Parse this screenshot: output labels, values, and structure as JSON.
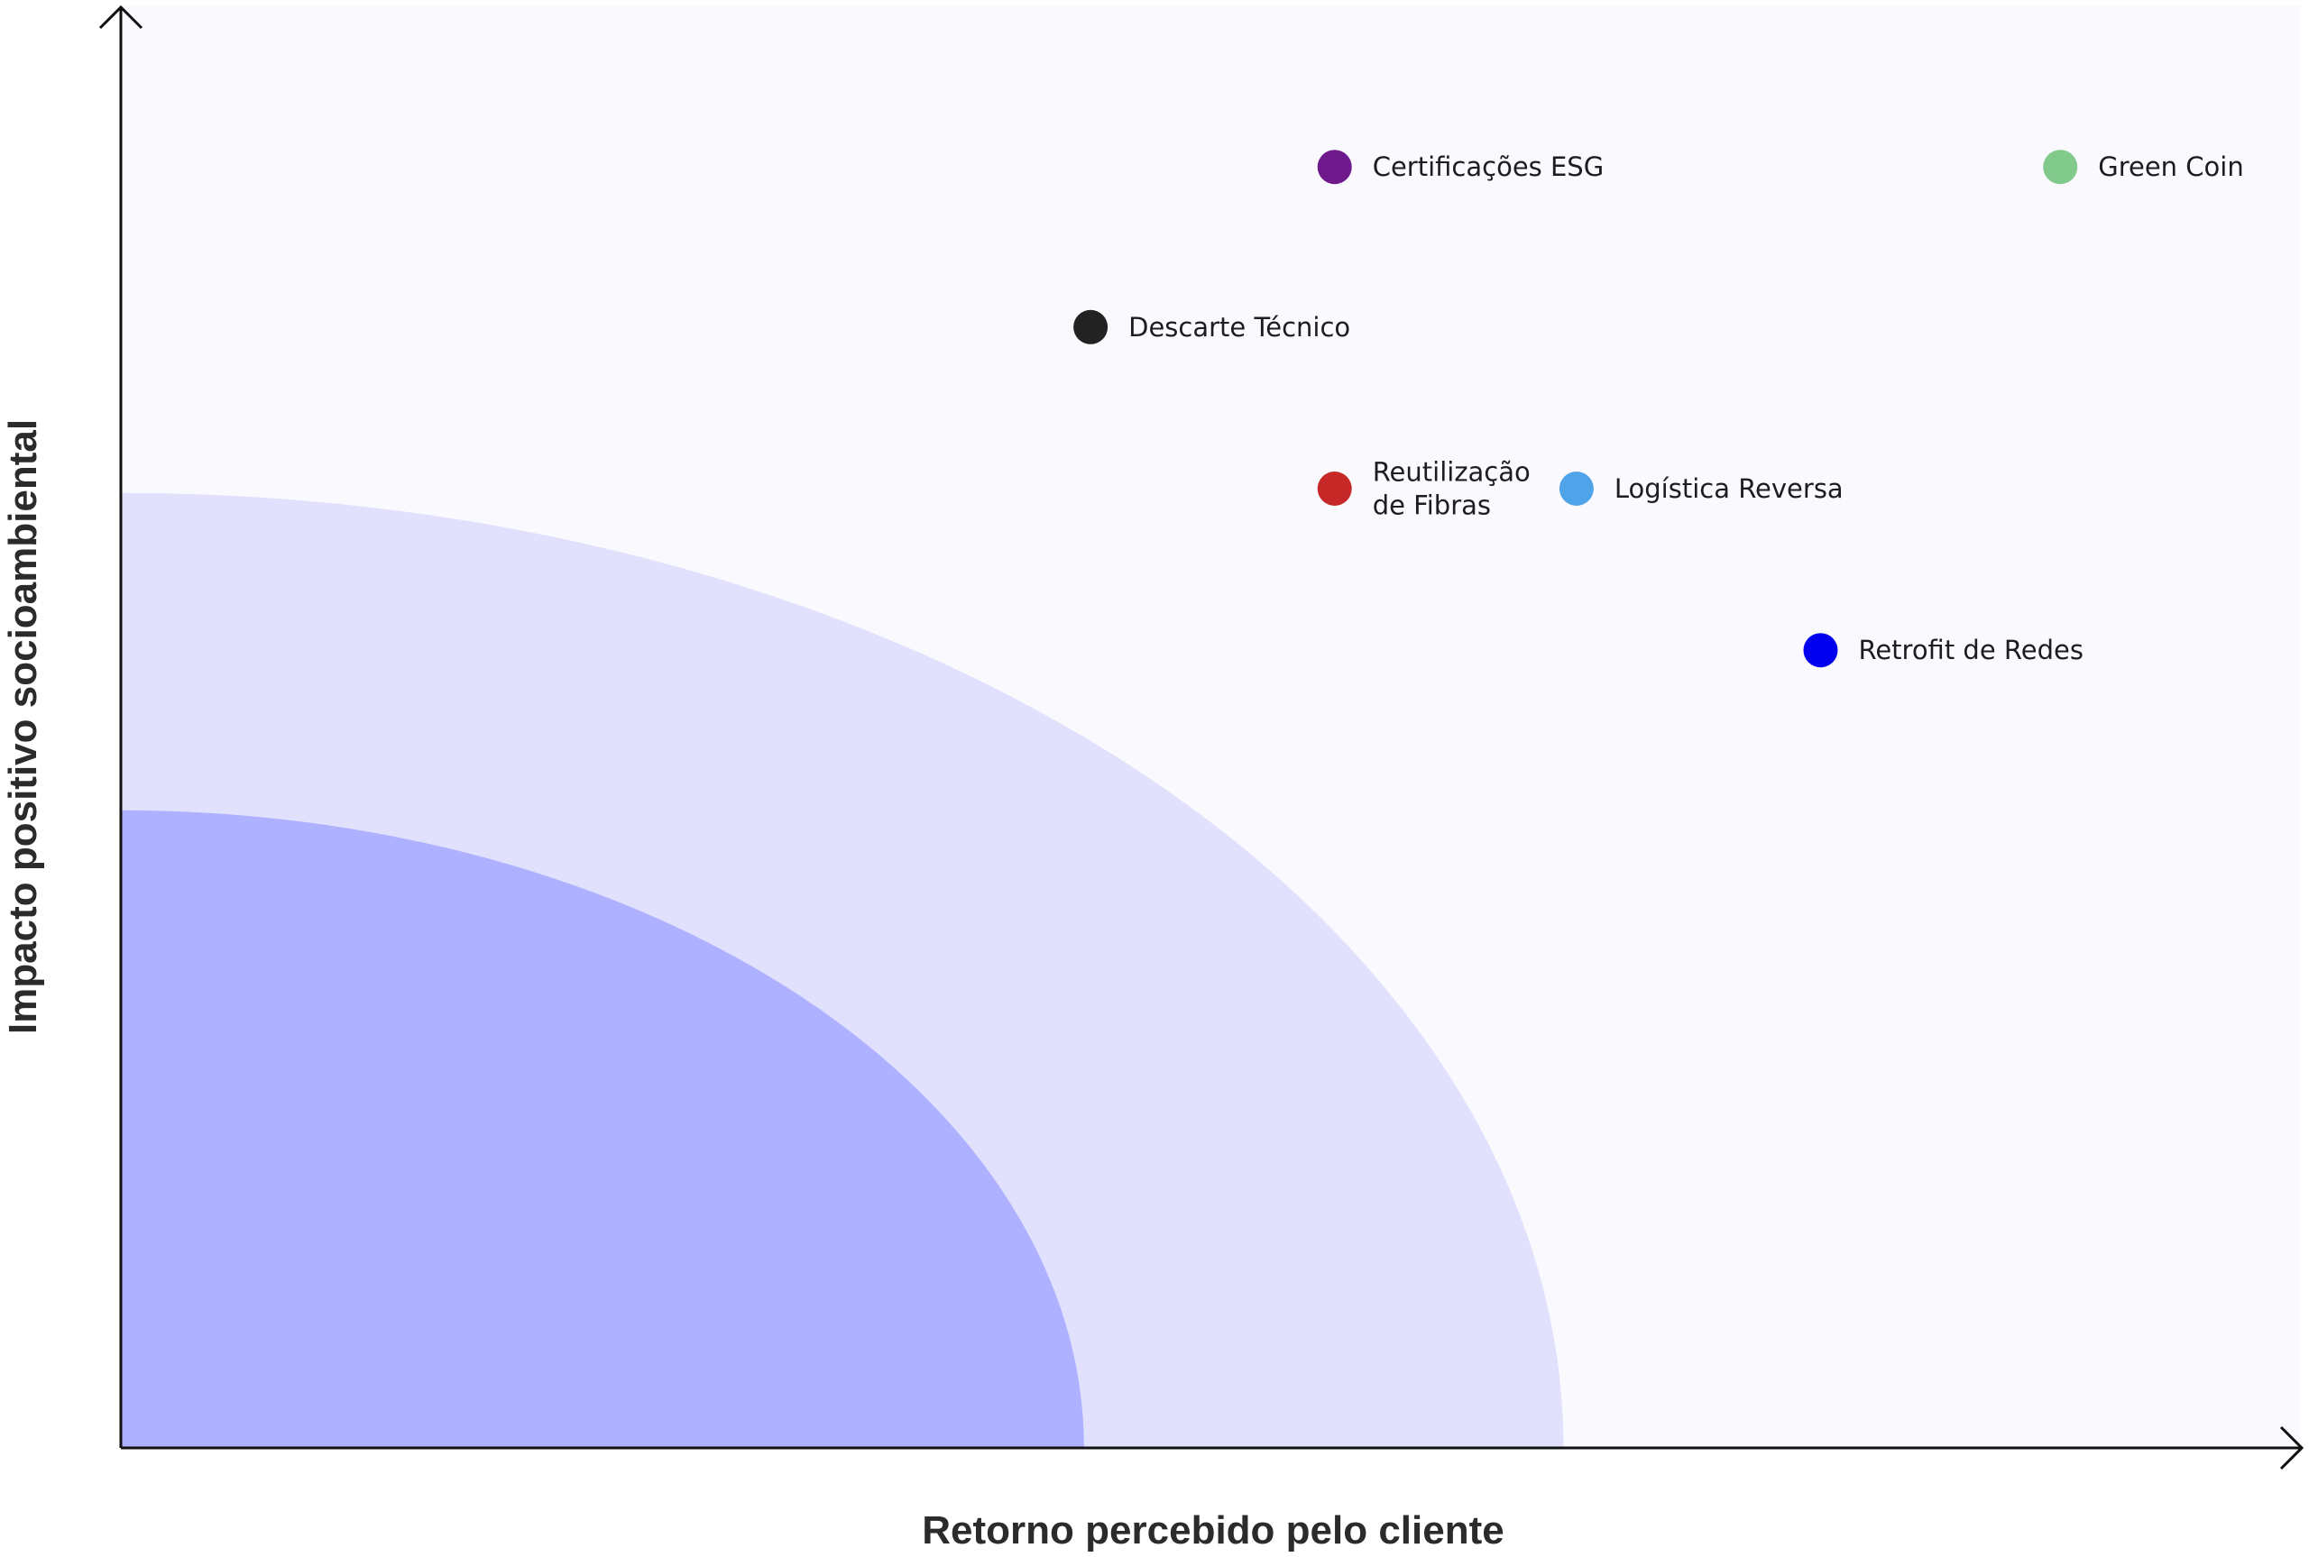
{
  "chart_data": {
    "type": "scatter",
    "title": "",
    "xlabel": "Retorno percebido pelo cliente",
    "ylabel": "Impacto positivo socioambiental",
    "xlim": [
      0,
      10
    ],
    "ylim": [
      0,
      10
    ],
    "grid": false,
    "axis_ticks": false,
    "zones": [
      {
        "radius": 4.42,
        "color": "#aeb1ff"
      },
      {
        "radius": 6.62,
        "color": "#e1e1fd"
      }
    ],
    "background_color": "#f9f9fe",
    "points": [
      {
        "label_lines": [
          "Certificações ESG"
        ],
        "x": 5.57,
        "y": 8.88,
        "color": "#6e1a8c"
      },
      {
        "label_lines": [
          "Green Coin"
        ],
        "x": 8.9,
        "y": 8.88,
        "color": "#82c98c"
      },
      {
        "label_lines": [
          "Descarte Técnico"
        ],
        "x": 4.45,
        "y": 7.77,
        "color": "#222222"
      },
      {
        "label_lines": [
          "Reutilização",
          "de Fibras"
        ],
        "x": 5.57,
        "y": 6.65,
        "color": "#c62828"
      },
      {
        "label_lines": [
          "Logística Reversa"
        ],
        "x": 6.68,
        "y": 6.65,
        "color": "#4fa3e8"
      },
      {
        "label_lines": [
          "Retrofit de Redes"
        ],
        "x": 7.8,
        "y": 5.53,
        "color": "#0000ee"
      }
    ]
  }
}
